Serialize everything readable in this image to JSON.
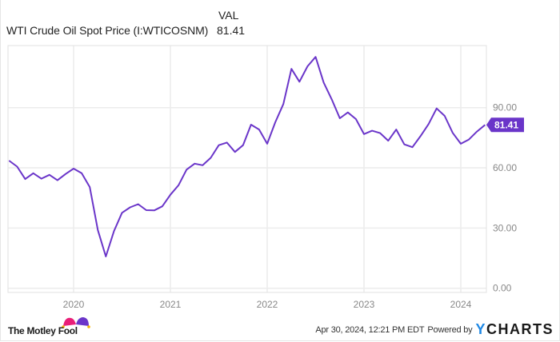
{
  "legend": {
    "column_header": "VAL",
    "series_name": "WTI Crude Oil Spot Price (I:WTICOSNM)",
    "series_value": "81.41"
  },
  "colors": {
    "line": "#6a35c9",
    "badge": "#6a35c9",
    "grid": "#ececec",
    "axis_text": "#888888",
    "ycharts_y": "#1e88e5"
  },
  "badge": {
    "label": "81.41"
  },
  "footer": {
    "brand_left": "The Motley Fool",
    "timestamp": "Apr 30, 2024, 12:21 PM EDT",
    "powered_by": "Powered by",
    "brand_right_y": "Y",
    "brand_right_rest": "CHARTS",
    "logo_icon": "jester-hat-icon"
  },
  "chart_data": {
    "type": "line",
    "title": "WTI Crude Oil Spot Price (I:WTICOSNM)",
    "xlabel": "",
    "ylabel": "",
    "ylim": [
      0,
      117
    ],
    "y_ticks": [
      "0.00",
      "30.00",
      "60.00",
      "90.00"
    ],
    "x_ticks": [
      "2020",
      "2021",
      "2022",
      "2023",
      "2024"
    ],
    "grid": true,
    "legend_position": "top-left",
    "last_value": 81.41,
    "series": [
      {
        "name": "WTI Crude Oil Spot Price (I:WTICOSNM)",
        "x": [
          "2019-05",
          "2019-06",
          "2019-07",
          "2019-08",
          "2019-09",
          "2019-10",
          "2019-11",
          "2019-12",
          "2020-01",
          "2020-02",
          "2020-03",
          "2020-04",
          "2020-05",
          "2020-06",
          "2020-07",
          "2020-08",
          "2020-09",
          "2020-10",
          "2020-11",
          "2020-12",
          "2021-01",
          "2021-02",
          "2021-03",
          "2021-04",
          "2021-05",
          "2021-06",
          "2021-07",
          "2021-08",
          "2021-09",
          "2021-10",
          "2021-11",
          "2021-12",
          "2022-01",
          "2022-02",
          "2022-03",
          "2022-04",
          "2022-05",
          "2022-06",
          "2022-07",
          "2022-08",
          "2022-09",
          "2022-10",
          "2022-11",
          "2022-12",
          "2023-01",
          "2023-02",
          "2023-03",
          "2023-04",
          "2023-05",
          "2023-06",
          "2023-07",
          "2023-08",
          "2023-09",
          "2023-10",
          "2023-11",
          "2023-12",
          "2024-01",
          "2024-02",
          "2024-03",
          "2024-04"
        ],
        "values": [
          63.6,
          60.6,
          54.4,
          57.3,
          54.6,
          56.5,
          53.8,
          56.9,
          59.6,
          57.3,
          50.4,
          29.0,
          15.8,
          28.4,
          37.6,
          40.3,
          41.9,
          38.9,
          38.8,
          40.8,
          46.6,
          51.3,
          59.1,
          62.1,
          61.3,
          65.0,
          71.3,
          72.6,
          67.9,
          71.3,
          81.5,
          79.1,
          72.0,
          82.7,
          91.8,
          109.3,
          102.9,
          110.6,
          115.3,
          102.5,
          94.1,
          84.7,
          87.6,
          84.3,
          76.8,
          78.5,
          77.3,
          73.5,
          79.1,
          71.7,
          70.3,
          75.8,
          81.8,
          89.6,
          85.9,
          77.4,
          72.0,
          74.1,
          78.1,
          81.41
        ]
      }
    ]
  }
}
